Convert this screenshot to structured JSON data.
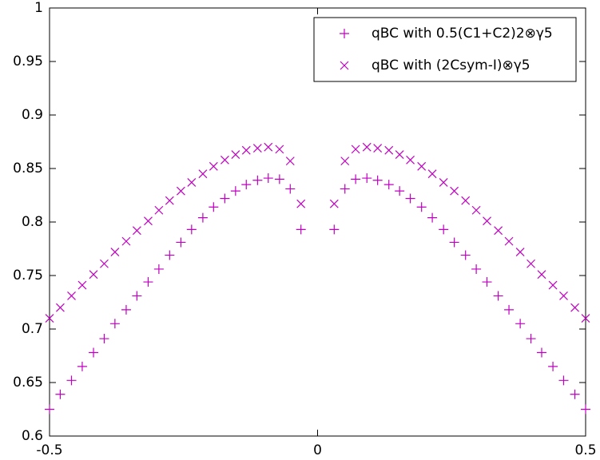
{
  "chart_data": {
    "type": "scatter",
    "x": [
      -0.5,
      -0.48,
      -0.459,
      -0.439,
      -0.418,
      -0.398,
      -0.378,
      -0.357,
      -0.337,
      -0.316,
      -0.296,
      -0.276,
      -0.255,
      -0.235,
      -0.214,
      -0.194,
      -0.173,
      -0.153,
      -0.133,
      -0.112,
      -0.092,
      -0.071,
      -0.051,
      -0.031,
      0.031,
      0.051,
      0.071,
      0.092,
      0.112,
      0.133,
      0.153,
      0.173,
      0.194,
      0.214,
      0.235,
      0.255,
      0.276,
      0.296,
      0.316,
      0.337,
      0.357,
      0.378,
      0.398,
      0.418,
      0.439,
      0.459,
      0.48,
      0.5
    ],
    "series": [
      {
        "name": "qBC with 0.5(C1+C2)2⊗γ5",
        "color": "#c000c0",
        "marker": "plus",
        "values": [
          0.625,
          0.639,
          0.652,
          0.665,
          0.678,
          0.691,
          0.705,
          0.718,
          0.731,
          0.744,
          0.756,
          0.769,
          0.781,
          0.793,
          0.804,
          0.814,
          0.822,
          0.829,
          0.835,
          0.839,
          0.841,
          0.84,
          0.831,
          0.793,
          0.793,
          0.831,
          0.84,
          0.841,
          0.839,
          0.835,
          0.829,
          0.822,
          0.814,
          0.804,
          0.793,
          0.781,
          0.769,
          0.756,
          0.744,
          0.731,
          0.718,
          0.705,
          0.691,
          0.678,
          0.665,
          0.652,
          0.639,
          0.625
        ]
      },
      {
        "name": "qBC with (2Csym-I)⊗γ5",
        "color": "#c000c0",
        "marker": "cross",
        "values": [
          0.71,
          0.72,
          0.731,
          0.741,
          0.751,
          0.761,
          0.772,
          0.782,
          0.792,
          0.801,
          0.811,
          0.82,
          0.829,
          0.837,
          0.845,
          0.852,
          0.858,
          0.863,
          0.867,
          0.869,
          0.87,
          0.868,
          0.857,
          0.817,
          0.817,
          0.857,
          0.868,
          0.87,
          0.869,
          0.867,
          0.863,
          0.858,
          0.852,
          0.845,
          0.837,
          0.829,
          0.82,
          0.811,
          0.801,
          0.792,
          0.782,
          0.772,
          0.761,
          0.751,
          0.741,
          0.731,
          0.72,
          0.71
        ]
      }
    ],
    "xlim": [
      -0.5,
      0.5
    ],
    "xticks": [
      -0.5,
      0,
      0.5
    ],
    "ylim": [
      0.6,
      1
    ],
    "yticks": [
      0.6,
      0.65,
      0.7,
      0.75,
      0.8,
      0.85,
      0.9,
      0.95,
      1
    ],
    "legend": "top-right",
    "grid": false
  }
}
